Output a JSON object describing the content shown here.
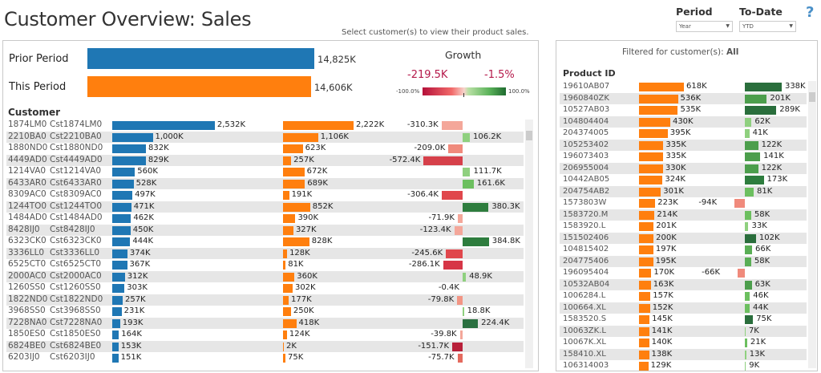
{
  "header": {
    "title": "Customer Overview: Sales",
    "hint": "Select customer(s) to view their product sales.",
    "period": {
      "label": "Period",
      "value": "Year"
    },
    "to_date": {
      "label": "To-Date",
      "value": "YTD"
    },
    "help_icon": "question-mark-icon"
  },
  "colors": {
    "prior": "#1f77b4",
    "current": "#ff7f0e"
  },
  "summary": {
    "prior_label": "Prior Period",
    "prior_value": "14,825K",
    "prior_num": 14825,
    "this_label": "This Period",
    "this_value": "14,606K",
    "this_num": 14606,
    "growth_title": "Growth",
    "growth_abs": "-219.5K",
    "growth_pct": "-1.5%",
    "legend_min": "-100.0%",
    "legend_max": "100.0%",
    "growth_pct_num": -1.5
  },
  "customers": {
    "header": "Customer",
    "rows": [
      {
        "id": "1874LM0",
        "name": "Cst1874LM0",
        "prior": 2532,
        "prior_label": "2,532K",
        "current": 2222,
        "current_label": "2,222K",
        "growth": -310.3,
        "growth_label": "-310.3K",
        "color": "#f4a79a"
      },
      {
        "id": "2210BA0",
        "name": "Cst2210BA0",
        "prior": 1000,
        "prior_label": "1,000K",
        "current": 1106,
        "current_label": "1,106K",
        "growth": 106.2,
        "growth_label": "106.2K",
        "color": "#8fd07f"
      },
      {
        "id": "1880ND0",
        "name": "Cst1880ND0",
        "prior": 832,
        "prior_label": "832K",
        "current": 623,
        "current_label": "623K",
        "growth": -209.0,
        "growth_label": "-209.0K",
        "color": "#f08a7c"
      },
      {
        "id": "4449AD0",
        "name": "Cst4449AD0",
        "prior": 829,
        "prior_label": "829K",
        "current": 257,
        "current_label": "257K",
        "growth": -572.4,
        "growth_label": "-572.4K",
        "color": "#d6404a"
      },
      {
        "id": "1214VA0",
        "name": "Cst1214VA0",
        "prior": 560,
        "prior_label": "560K",
        "current": 672,
        "current_label": "672K",
        "growth": 111.7,
        "growth_label": "111.7K",
        "color": "#8fd07f"
      },
      {
        "id": "6433AR0",
        "name": "Cst6433AR0",
        "prior": 528,
        "prior_label": "528K",
        "current": 689,
        "current_label": "689K",
        "growth": 161.6,
        "growth_label": "161.6K",
        "color": "#6cbf5f"
      },
      {
        "id": "8309AC0",
        "name": "Cst8309AC0",
        "prior": 497,
        "prior_label": "497K",
        "current": 191,
        "current_label": "191K",
        "growth": -306.4,
        "growth_label": "-306.4K",
        "color": "#e0474c"
      },
      {
        "id": "1244TO0",
        "name": "Cst1244TO0",
        "prior": 471,
        "prior_label": "471K",
        "current": 852,
        "current_label": "852K",
        "growth": 380.3,
        "growth_label": "380.3K",
        "color": "#2e7d3e"
      },
      {
        "id": "1484AD0",
        "name": "Cst1484AD0",
        "prior": 462,
        "prior_label": "462K",
        "current": 390,
        "current_label": "390K",
        "growth": -71.9,
        "growth_label": "-71.9K",
        "color": "#f4a79a"
      },
      {
        "id": "8428IJ0",
        "name": "Cst8428IJ0",
        "prior": 450,
        "prior_label": "450K",
        "current": 327,
        "current_label": "327K",
        "growth": -123.4,
        "growth_label": "-123.4K",
        "color": "#f4a79a"
      },
      {
        "id": "6323CK0",
        "name": "Cst6323CK0",
        "prior": 444,
        "prior_label": "444K",
        "current": 828,
        "current_label": "828K",
        "growth": 384.8,
        "growth_label": "384.8K",
        "color": "#2e7d3e"
      },
      {
        "id": "3336LL0",
        "name": "Cst3336LL0",
        "prior": 374,
        "prior_label": "374K",
        "current": 128,
        "current_label": "128K",
        "growth": -245.6,
        "growth_label": "-245.6K",
        "color": "#e0474c"
      },
      {
        "id": "6525CT0",
        "name": "Cst6525CT0",
        "prior": 367,
        "prior_label": "367K",
        "current": 81,
        "current_label": "81K",
        "growth": -286.1,
        "growth_label": "-286.1K",
        "color": "#d63647"
      },
      {
        "id": "2000AC0",
        "name": "Cst2000AC0",
        "prior": 312,
        "prior_label": "312K",
        "current": 360,
        "current_label": "360K",
        "growth": 48.9,
        "growth_label": "48.9K",
        "color": "#8fd07f"
      },
      {
        "id": "1260SS0",
        "name": "Cst1260SS0",
        "prior": 303,
        "prior_label": "303K",
        "current": 302,
        "current_label": "302K",
        "growth": -0.4,
        "growth_label": "-0.4K",
        "color": "#f4a79a"
      },
      {
        "id": "1822ND0",
        "name": "Cst1822ND0",
        "prior": 257,
        "prior_label": "257K",
        "current": 177,
        "current_label": "177K",
        "growth": -79.8,
        "growth_label": "-79.8K",
        "color": "#f29584"
      },
      {
        "id": "3968SS0",
        "name": "Cst3968SS0",
        "prior": 231,
        "prior_label": "231K",
        "current": 250,
        "current_label": "250K",
        "growth": 18.8,
        "growth_label": "18.8K",
        "color": "#8fd07f"
      },
      {
        "id": "7228NA0",
        "name": "Cst7228NA0",
        "prior": 193,
        "prior_label": "193K",
        "current": 418,
        "current_label": "418K",
        "growth": 224.4,
        "growth_label": "224.4K",
        "color": "#2a7040"
      },
      {
        "id": "1850ES0",
        "name": "Cst1850ES0",
        "prior": 164,
        "prior_label": "164K",
        "current": 124,
        "current_label": "124K",
        "growth": -39.8,
        "growth_label": "-39.8K",
        "color": "#f4a79a"
      },
      {
        "id": "6824BE0",
        "name": "Cst6824BE0",
        "prior": 153,
        "prior_label": "153K",
        "current": 2,
        "current_label": "2K",
        "growth": -151.7,
        "growth_label": "-151.7K",
        "color": "#b8203a"
      },
      {
        "id": "6203IJ0",
        "name": "Cst6203IJ0",
        "prior": 151,
        "prior_label": "151K",
        "current": 75,
        "current_label": "75K",
        "growth": -75.7,
        "growth_label": "-75.7K",
        "color": "#e46a5e"
      }
    ]
  },
  "products": {
    "filter_prefix": "Filtered for customer(s): ",
    "filter_value": "All",
    "header": "Product ID",
    "rows": [
      {
        "id": "19610AB07",
        "sales": 618,
        "sales_label": "618K",
        "growth": 338,
        "growth_label": "338K",
        "color": "#2a6e3c"
      },
      {
        "id": "1960840ZK",
        "sales": 536,
        "sales_label": "536K",
        "growth": 201,
        "growth_label": "201K",
        "color": "#4c9e4c"
      },
      {
        "id": "10527AB03",
        "sales": 535,
        "sales_label": "535K",
        "growth": 289,
        "growth_label": "289K",
        "color": "#2a6e3c"
      },
      {
        "id": "104804404",
        "sales": 430,
        "sales_label": "430K",
        "growth": 62,
        "growth_label": "62K",
        "color": "#8fd07f"
      },
      {
        "id": "204374005",
        "sales": 395,
        "sales_label": "395K",
        "growth": 41,
        "growth_label": "41K",
        "color": "#8fd07f"
      },
      {
        "id": "105253402",
        "sales": 335,
        "sales_label": "335K",
        "growth": 122,
        "growth_label": "122K",
        "color": "#4c9e4c"
      },
      {
        "id": "196073403",
        "sales": 335,
        "sales_label": "335K",
        "growth": 141,
        "growth_label": "141K",
        "color": "#4c9e4c"
      },
      {
        "id": "206955004",
        "sales": 330,
        "sales_label": "330K",
        "growth": 122,
        "growth_label": "122K",
        "color": "#4c9e4c"
      },
      {
        "id": "10442AB05",
        "sales": 324,
        "sales_label": "324K",
        "growth": 173,
        "growth_label": "173K",
        "color": "#2e7d3e"
      },
      {
        "id": "204754AB2",
        "sales": 301,
        "sales_label": "301K",
        "growth": 81,
        "growth_label": "81K",
        "color": "#6cbf5f"
      },
      {
        "id": "1573803W",
        "sales": 223,
        "sales_label": "223K",
        "growth": -94,
        "growth_label": "-94K",
        "color": "#f08a7c"
      },
      {
        "id": "1583720.M",
        "sales": 214,
        "sales_label": "214K",
        "growth": 58,
        "growth_label": "58K",
        "color": "#6cbf5f"
      },
      {
        "id": "1583920.L",
        "sales": 201,
        "sales_label": "201K",
        "growth": 33,
        "growth_label": "33K",
        "color": "#8fd07f"
      },
      {
        "id": "151502406",
        "sales": 200,
        "sales_label": "200K",
        "growth": 102,
        "growth_label": "102K",
        "color": "#2a6e3c"
      },
      {
        "id": "104815402",
        "sales": 197,
        "sales_label": "197K",
        "growth": 66,
        "growth_label": "66K",
        "color": "#5aae55"
      },
      {
        "id": "204775406",
        "sales": 195,
        "sales_label": "195K",
        "growth": 58,
        "growth_label": "58K",
        "color": "#5aae55"
      },
      {
        "id": "196095404",
        "sales": 170,
        "sales_label": "170K",
        "growth": -66,
        "growth_label": "-66K",
        "color": "#f08a7c"
      },
      {
        "id": "10532AB04",
        "sales": 163,
        "sales_label": "163K",
        "growth": 63,
        "growth_label": "63K",
        "color": "#4c9e4c"
      },
      {
        "id": "1006284.L",
        "sales": 157,
        "sales_label": "157K",
        "growth": 46,
        "growth_label": "46K",
        "color": "#6cbf5f"
      },
      {
        "id": "100664.XL",
        "sales": 152,
        "sales_label": "152K",
        "growth": 44,
        "growth_label": "44K",
        "color": "#6cbf5f"
      },
      {
        "id": "1583520.S",
        "sales": 145,
        "sales_label": "145K",
        "growth": 75,
        "growth_label": "75K",
        "color": "#2a6e3c"
      },
      {
        "id": "10063ZK.L",
        "sales": 141,
        "sales_label": "141K",
        "growth": 7,
        "growth_label": "7K",
        "color": "#8fd07f"
      },
      {
        "id": "10067K.XL",
        "sales": 140,
        "sales_label": "140K",
        "growth": 21,
        "growth_label": "21K",
        "color": "#6cbf5f"
      },
      {
        "id": "158410.XL",
        "sales": 138,
        "sales_label": "138K",
        "growth": 13,
        "growth_label": "13K",
        "color": "#8fd07f"
      },
      {
        "id": "106314003",
        "sales": 129,
        "sales_label": "129K",
        "growth": 9,
        "growth_label": "9K",
        "color": "#8fd07f"
      }
    ]
  }
}
